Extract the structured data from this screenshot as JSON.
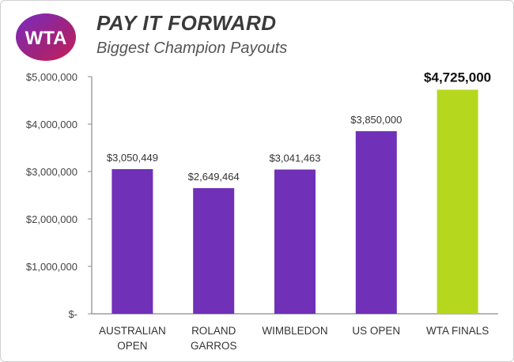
{
  "header": {
    "logo_text": "WTA",
    "title": "PAY IT FORWARD",
    "subtitle": "Biggest Champion Payouts"
  },
  "colors": {
    "bar": "#7030b8",
    "highlight": "#b5d81e",
    "axis": "#8a8a8a"
  },
  "chart_data": {
    "type": "bar",
    "title": "PAY IT FORWARD",
    "subtitle": "Biggest Champion Payouts",
    "categories": [
      [
        "AUSTRALIAN",
        "OPEN"
      ],
      [
        "ROLAND",
        "GARROS"
      ],
      [
        "WIMBLEDON"
      ],
      [
        "US OPEN"
      ],
      [
        "WTA FINALS"
      ]
    ],
    "values": [
      3050449,
      2649464,
      3041463,
      3850000,
      4725000
    ],
    "data_labels": [
      "$3,050,449",
      "$2,649,464",
      "$3,041,463",
      "$3,850,000",
      "$4,725,000"
    ],
    "highlight_index": 4,
    "ylim": [
      0,
      5000000
    ],
    "yticks": [
      0,
      1000000,
      2000000,
      3000000,
      4000000,
      5000000
    ],
    "ytick_labels": [
      "$-",
      "$1,000,000",
      "$2,000,000",
      "$3,000,000",
      "$4,000,000",
      "$5,000,000"
    ],
    "grid": false,
    "legend": "none"
  }
}
